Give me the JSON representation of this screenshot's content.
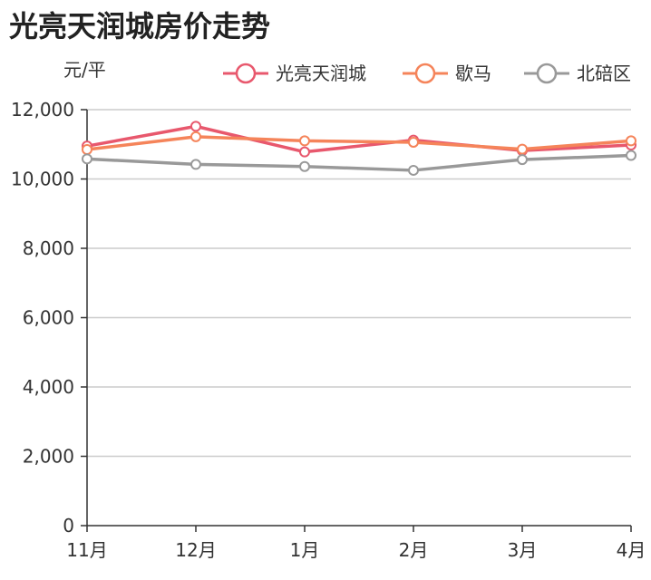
{
  "chart_data": {
    "type": "line",
    "title": "光亮天润城房价走势",
    "ylabel": "元/平",
    "categories": [
      "11月",
      "12月",
      "1月",
      "2月",
      "3月",
      "4月"
    ],
    "ylim": [
      0,
      12000
    ],
    "yticks": [
      0,
      2000,
      4000,
      6000,
      8000,
      10000,
      12000
    ],
    "ytick_labels": [
      "0",
      "2,000",
      "4,000",
      "6,000",
      "8,000",
      "10,000",
      "12,000"
    ],
    "grid": true,
    "legend_position": "top-right",
    "series": [
      {
        "name": "光亮天润城",
        "color": "#e8586d",
        "values": [
          10950,
          11520,
          10780,
          11120,
          10820,
          10980
        ]
      },
      {
        "name": "歇马",
        "color": "#f5845a",
        "values": [
          10850,
          11220,
          11100,
          11060,
          10860,
          11100
        ]
      },
      {
        "name": "北碚区",
        "color": "#999999",
        "values": [
          10580,
          10420,
          10360,
          10250,
          10560,
          10680
        ]
      }
    ]
  }
}
